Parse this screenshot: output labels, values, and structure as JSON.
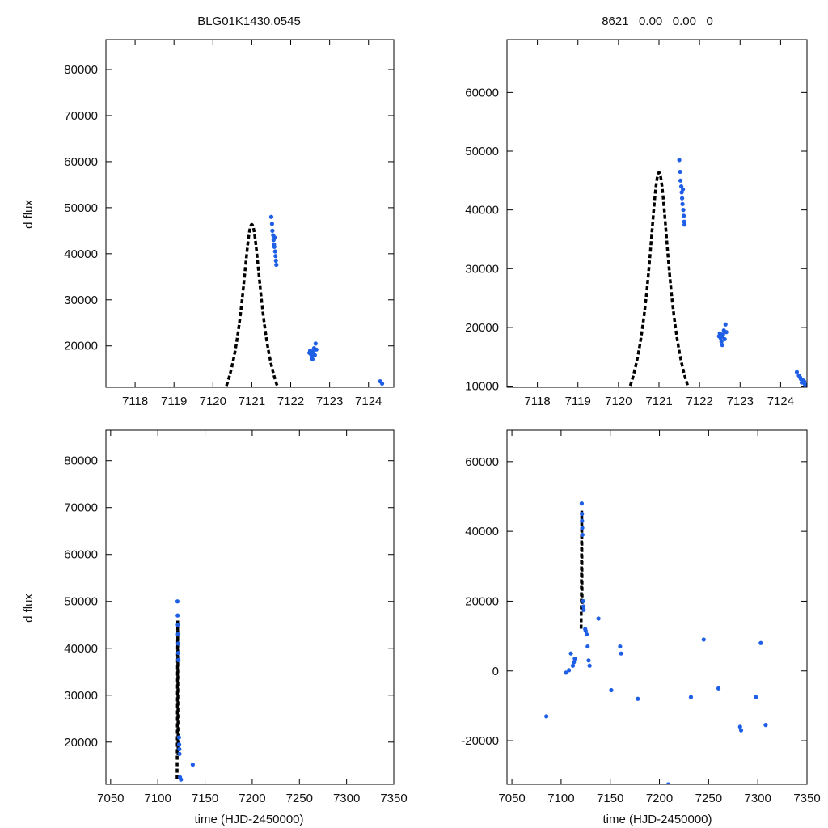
{
  "figure": {
    "left_title": "BLG01K1430.0545",
    "right_title": "8621   0.00   0.00   0",
    "xlabel": "time (HJD-2450000)",
    "ylabel": "d flux"
  },
  "colors": {
    "data_points": "#1f5fe6",
    "model_curve": "#000000",
    "axes": "#000000",
    "background": "#ffffff"
  },
  "chart_data": [
    {
      "id": "top-left",
      "type": "scatter",
      "panel": "zoom",
      "title": "BLG01K1430.0545",
      "ylabel": "d flux",
      "xlabel": "",
      "xlim": [
        7117.25,
        7124.65
      ],
      "ylim": [
        11000,
        86500
      ],
      "xticks": [
        7118,
        7119,
        7120,
        7121,
        7122,
        7123,
        7124
      ],
      "yticks": [
        20000,
        30000,
        40000,
        50000,
        60000,
        70000,
        80000
      ],
      "model": {
        "t0": 7121.0,
        "u0": 0.19,
        "tE": 1.3,
        "fs": 10700,
        "fb": 0
      },
      "points": [
        [
          7121.5,
          48000
        ],
        [
          7121.52,
          46500
        ],
        [
          7121.53,
          45000
        ],
        [
          7121.55,
          44000
        ],
        [
          7121.56,
          43000
        ],
        [
          7121.57,
          42000
        ],
        [
          7121.58,
          41500
        ],
        [
          7121.6,
          40500
        ],
        [
          7121.61,
          39500
        ],
        [
          7121.62,
          38500
        ],
        [
          7121.63,
          37600
        ],
        [
          7121.59,
          43500
        ],
        [
          7122.48,
          18500
        ],
        [
          7122.5,
          19000
        ],
        [
          7122.52,
          18200
        ],
        [
          7122.54,
          17600
        ],
        [
          7122.56,
          17100
        ],
        [
          7122.58,
          18800
        ],
        [
          7122.6,
          19500
        ],
        [
          7122.62,
          18000
        ],
        [
          7122.64,
          20500
        ],
        [
          7122.66,
          19200
        ],
        [
          7122.55,
          18400
        ],
        [
          7124.3,
          12300
        ],
        [
          7124.35,
          11800
        ]
      ]
    },
    {
      "id": "top-right",
      "type": "scatter",
      "panel": "zoom",
      "title": "8621   0.00   0.00   0",
      "ylabel": "",
      "xlabel": "",
      "xlim": [
        7117.25,
        7124.65
      ],
      "ylim": [
        9800,
        69000
      ],
      "xticks": [
        7118,
        7119,
        7120,
        7121,
        7122,
        7123,
        7124
      ],
      "yticks": [
        10000,
        20000,
        30000,
        40000,
        50000,
        60000
      ],
      "model": {
        "t0": 7121.0,
        "u0": 0.19,
        "tE": 1.3,
        "fs": 10700,
        "fb": 0
      },
      "points": [
        [
          7121.5,
          48500
        ],
        [
          7121.52,
          46500
        ],
        [
          7121.53,
          45000
        ],
        [
          7121.55,
          44000
        ],
        [
          7121.56,
          43000
        ],
        [
          7121.57,
          42000
        ],
        [
          7121.58,
          41000
        ],
        [
          7121.6,
          40000
        ],
        [
          7121.61,
          39000
        ],
        [
          7121.62,
          38000
        ],
        [
          7121.63,
          37500
        ],
        [
          7121.59,
          43500
        ],
        [
          7122.48,
          18500
        ],
        [
          7122.5,
          19000
        ],
        [
          7122.52,
          18200
        ],
        [
          7122.54,
          17600
        ],
        [
          7122.56,
          17000
        ],
        [
          7122.58,
          18800
        ],
        [
          7122.6,
          19500
        ],
        [
          7122.62,
          18000
        ],
        [
          7122.64,
          20500
        ],
        [
          7122.66,
          19200
        ],
        [
          7122.55,
          18400
        ],
        [
          7124.4,
          12400
        ],
        [
          7124.45,
          11800
        ],
        [
          7124.5,
          11200
        ],
        [
          7124.55,
          11000
        ],
        [
          7124.58,
          10800
        ],
        [
          7124.6,
          10300
        ],
        [
          7124.48,
          11500
        ],
        [
          7124.52,
          10600
        ]
      ]
    },
    {
      "id": "bottom-left",
      "type": "scatter",
      "panel": "full",
      "title": "",
      "ylabel": "d flux",
      "xlabel": "time (HJD-2450000)",
      "xlim": [
        7045,
        7350
      ],
      "ylim": [
        11000,
        86500
      ],
      "xticks": [
        7050,
        7100,
        7150,
        7200,
        7250,
        7300,
        7350
      ],
      "yticks": [
        20000,
        30000,
        40000,
        50000,
        60000,
        70000,
        80000
      ],
      "model": {
        "t0": 7121.0,
        "u0": 0.19,
        "tE": 1.3,
        "fs": 10700,
        "fb": 0
      },
      "points": [
        [
          7120.8,
          50000
        ],
        [
          7121.0,
          47000
        ],
        [
          7121.2,
          45000
        ],
        [
          7121.3,
          43000
        ],
        [
          7121.5,
          41000
        ],
        [
          7121.6,
          39000
        ],
        [
          7121.8,
          37500
        ],
        [
          7122.4,
          21000
        ],
        [
          7122.6,
          19500
        ],
        [
          7122.8,
          18500
        ],
        [
          7123.0,
          17500
        ],
        [
          7124.5,
          12000
        ],
        [
          7123.5,
          12500
        ],
        [
          7137.0,
          15200
        ]
      ]
    },
    {
      "id": "bottom-right",
      "type": "scatter",
      "panel": "full",
      "title": "",
      "ylabel": "",
      "xlabel": "time (HJD-2450000)",
      "xlim": [
        7045,
        7350
      ],
      "ylim": [
        -32500,
        69000
      ],
      "xticks": [
        7050,
        7100,
        7150,
        7200,
        7250,
        7300,
        7350
      ],
      "yticks": [
        -20000,
        0,
        20000,
        40000,
        60000
      ],
      "model": {
        "t0": 7121.0,
        "u0": 0.19,
        "tE": 1.3,
        "fs": 10700,
        "fb": 0
      },
      "points": [
        [
          7121.0,
          48000
        ],
        [
          7121.2,
          45000
        ],
        [
          7121.3,
          43000
        ],
        [
          7121.5,
          41000
        ],
        [
          7121.7,
          39000
        ],
        [
          7122.5,
          20000
        ],
        [
          7122.8,
          18500
        ],
        [
          7123.0,
          17500
        ],
        [
          7124.5,
          12000
        ],
        [
          7125.0,
          11500
        ],
        [
          7126.0,
          10500
        ],
        [
          7127.0,
          7000
        ],
        [
          7128.0,
          3000
        ],
        [
          7129.0,
          1500
        ],
        [
          7112.0,
          1500
        ],
        [
          7113.0,
          2500
        ],
        [
          7114.0,
          3500
        ],
        [
          7110.0,
          5000
        ],
        [
          7108.0,
          200
        ],
        [
          7105.0,
          -500
        ],
        [
          7138.0,
          15000
        ],
        [
          7160.0,
          7000
        ],
        [
          7161.0,
          5000
        ],
        [
          7245.0,
          9000
        ],
        [
          7303.0,
          8000
        ],
        [
          7085.0,
          -13000
        ],
        [
          7282.0,
          -16000
        ],
        [
          7283.0,
          -17000
        ],
        [
          7209.0,
          -32500
        ],
        [
          7308.0,
          -15500
        ],
        [
          7260.0,
          -5000
        ],
        [
          7232.0,
          -7500
        ],
        [
          7178.0,
          -8000
        ],
        [
          7151.0,
          -5500
        ],
        [
          7298.0,
          -7500
        ]
      ]
    }
  ]
}
